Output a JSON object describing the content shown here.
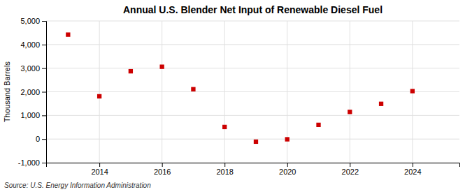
{
  "chart_data": {
    "type": "scatter",
    "title": "Annual U.S. Blender Net Input of Renewable Diesel Fuel",
    "y_label": "Thousand Barrels",
    "source": "Source: U.S. Energy Information Administration",
    "x": [
      2013,
      2014,
      2015,
      2016,
      2017,
      2018,
      2019,
      2020,
      2021,
      2022,
      2023,
      2024
    ],
    "values": [
      4420,
      1810,
      2870,
      3060,
      2110,
      510,
      -110,
      -10,
      600,
      1150,
      1490,
      2030
    ],
    "color": "#cc0000",
    "marker": "square",
    "xlim": [
      2012.3,
      2025.5
    ],
    "xticks": [
      2014,
      2016,
      2018,
      2020,
      2022,
      2024
    ],
    "ylim": [
      -1000,
      5000
    ],
    "yticks": [
      {
        "value": -1000,
        "label": "-1,000"
      },
      0,
      {
        "value": 1000,
        "label": "1,000"
      },
      {
        "value": 2000,
        "label": "2,000"
      },
      {
        "value": 3000,
        "label": "3,000"
      },
      {
        "value": 4000,
        "label": "4,000"
      },
      {
        "value": 5000,
        "label": "5,000"
      }
    ],
    "grid": true
  }
}
